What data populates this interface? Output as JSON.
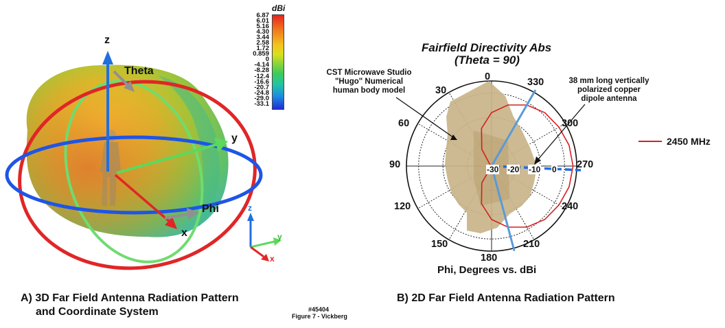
{
  "left_panel": {
    "caption_line1": "A) 3D Far Field Antenna Radiation Pattern",
    "caption_line2": "and Coordinate System",
    "axes": {
      "z": "z",
      "y": "y",
      "x": "x",
      "theta": "Theta",
      "phi": "Phi"
    },
    "small_axes": {
      "z": "z",
      "y": "y",
      "x": "x"
    },
    "colorbar": {
      "unit": "dBi",
      "ticks": [
        "6.87",
        "6.01",
        "5.16",
        "4.30",
        "3.44",
        "2.58",
        "1.72",
        "0.859",
        "0",
        "-4.14",
        "-8.28",
        "-12.4",
        "-16.6",
        "-20.7",
        "-24.8",
        "-29.0",
        "-33.1"
      ]
    }
  },
  "right_panel": {
    "title_line1": "Fairfield Directivity Abs",
    "title_line2": "(Theta = 90)",
    "caption": "B) 2D Far Field Antenna Radiation Pattern",
    "xlabel": "Phi, Degrees vs. dBi",
    "annotation_body_line1": "CST Microwave Studio",
    "annotation_body_line2": "\"Hugo\" Numerical",
    "annotation_body_line3": "human body model",
    "annotation_antenna_line1": "38 mm long vertically",
    "annotation_antenna_line2": "polarized copper",
    "annotation_antenna_line3": "dipole antenna",
    "legend": {
      "label": "2450 MHz",
      "color": "#d42020"
    }
  },
  "footer": {
    "id": "#45404",
    "figure": "Figure 7 - Vickberg"
  },
  "chart_data": {
    "type": "polar",
    "title": "Fairfield Directivity Abs (Theta = 90)",
    "xlabel": "Phi, Degrees vs. dBi",
    "angle_ticks": [
      "0",
      "30",
      "60",
      "90",
      "120",
      "150",
      "180",
      "210",
      "240",
      "270",
      "300",
      "330"
    ],
    "radial_ticks": [
      "-30",
      "-20",
      "-10",
      "0"
    ],
    "radial_range": [
      -30,
      5
    ],
    "series": [
      {
        "name": "2450 MHz",
        "color": "#d42020",
        "phi": [
          0,
          15,
          30,
          45,
          60,
          75,
          90,
          105,
          120,
          135,
          150,
          165,
          180,
          195,
          210,
          225,
          240,
          255,
          270,
          285,
          300,
          315,
          330,
          345
        ],
        "dbi": [
          -8,
          -14,
          -22,
          -29,
          -30,
          -30,
          -29,
          -29,
          -30,
          -30,
          -22,
          -14,
          -8,
          -4,
          -1,
          1,
          2,
          3,
          3.5,
          3,
          2,
          1,
          -1,
          -4
        ]
      }
    ]
  }
}
